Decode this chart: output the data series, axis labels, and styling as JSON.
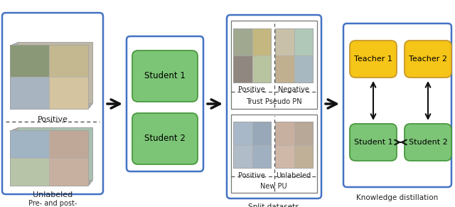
{
  "fig_width": 6.4,
  "fig_height": 2.91,
  "bg_color": "#ffffff",
  "border_blue": "#4472C4",
  "box_green": "#7cc576",
  "box_orange": "#F5C518",
  "arrow_color": "#111111",
  "text_color": "#000000",
  "sections": [
    "Pre- and post-\nevents RGB",
    "Split datasets",
    "Knowledge distillation"
  ],
  "student_labels": [
    "Student 1",
    "Student 2"
  ],
  "teacher_labels": [
    "Teacher 1",
    "Teacher 2"
  ],
  "trust_pseudo_label": "Trust Pseudo PN",
  "new_pu_label": "New PU",
  "positive_label": "Positive",
  "negative_label": "Negative",
  "unlabeled_label": "Unlabeled",
  "positive_label2": "Positive",
  "positive_text_left": "Positive",
  "unlabeled_text_left": "Unlabeled"
}
